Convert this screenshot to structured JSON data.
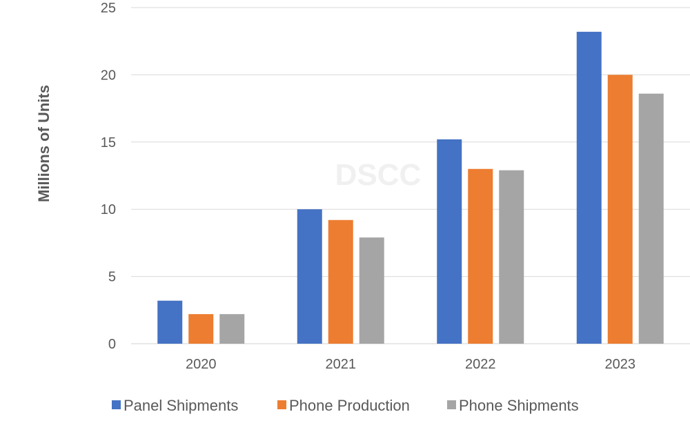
{
  "chart_data": {
    "type": "bar",
    "title": "",
    "xlabel": "",
    "ylabel": "Millions of Units",
    "categories": [
      "2020",
      "2021",
      "2022",
      "2023"
    ],
    "series": [
      {
        "name": "Panel Shipments",
        "color": "#4472C4",
        "values": [
          3.2,
          10.0,
          15.2,
          23.2
        ]
      },
      {
        "name": "Phone Production",
        "color": "#ED7D31",
        "values": [
          2.2,
          9.2,
          13.0,
          20.0
        ]
      },
      {
        "name": "Phone Shipments",
        "color": "#A5A5A5",
        "values": [
          2.2,
          7.9,
          12.9,
          18.6
        ]
      }
    ],
    "ylim": [
      0,
      25
    ],
    "yticks": [
      "0",
      "5",
      "10",
      "15",
      "20",
      "25"
    ],
    "grid": true,
    "legend_position": "bottom",
    "watermark": "DSCC"
  }
}
